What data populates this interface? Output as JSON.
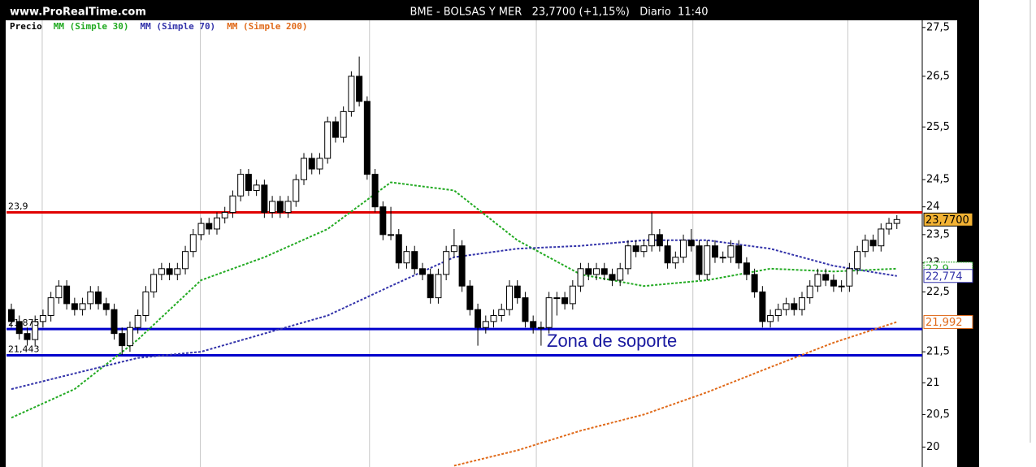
{
  "chart_data": {
    "type": "candlestick",
    "source": "www.ProRealTime.com",
    "title": "BME - BOLSAS Y MER   23,7700 (+1,15%)   Diario  11:40",
    "annotation": "Zona de soporte",
    "log_scale": true,
    "ylim": [
      19.7,
      27.65
    ],
    "yticks": [
      {
        "value": 27.5,
        "label": "27,5"
      },
      {
        "value": 26.5,
        "label": "26,5"
      },
      {
        "value": 25.5,
        "label": "25,5"
      },
      {
        "value": 24.5,
        "label": "24,5"
      },
      24,
      {
        "value": 23.5,
        "label": "23,5"
      },
      23,
      {
        "value": 22.5,
        "label": "22,5"
      },
      {
        "value": 21.5,
        "label": "21,5"
      },
      21,
      {
        "value": 20.5,
        "label": "20,5"
      },
      20
    ],
    "xgrid": [
      3.9,
      23.9,
      45.3,
      66.4,
      86.2,
      105.8
    ],
    "hlines": [
      {
        "value": 23.9,
        "label": "23,9",
        "color": "#e00000"
      },
      {
        "value": 21.875,
        "label": "21,875",
        "color": "#0000cc"
      },
      {
        "value": 21.443,
        "label": "21,443",
        "color": "#0000cc"
      }
    ],
    "series": [
      {
        "name": "Precio",
        "color": "#000000",
        "last_label": "23,7700",
        "label_color": "#f2b233",
        "open": [
          22.2,
          22.0,
          21.8,
          21.7,
          22.0,
          22.1,
          22.4,
          22.6,
          22.3,
          22.2,
          22.3,
          22.5,
          22.3,
          22.2,
          21.8,
          21.6,
          21.9,
          22.1,
          22.5,
          22.8,
          22.9,
          22.8,
          22.9,
          23.2,
          23.5,
          23.7,
          23.6,
          23.8,
          23.9,
          24.2,
          24.6,
          24.3,
          24.4,
          23.9,
          24.1,
          23.9,
          24.1,
          24.5,
          24.9,
          24.7,
          24.9,
          25.6,
          25.3,
          25.8,
          26.5,
          26.0,
          24.6,
          24.0,
          23.5,
          23.5,
          23.0,
          23.2,
          22.9,
          22.8,
          22.4,
          22.8,
          23.2,
          23.3,
          22.6,
          22.2,
          21.9,
          22.0,
          22.1,
          22.2,
          22.6,
          22.4,
          22.0,
          21.9,
          21.9,
          22.4,
          22.4,
          22.3,
          22.6,
          22.9,
          22.8,
          22.9,
          22.8,
          22.7,
          22.9,
          23.3,
          23.2,
          23.3,
          23.5,
          23.3,
          23.0,
          23.1,
          23.4,
          23.3,
          22.8,
          23.3,
          23.1,
          23.1,
          23.3,
          23.0,
          22.8,
          22.5,
          22.0,
          22.1,
          22.2,
          22.3,
          22.2,
          22.4,
          22.6,
          22.8,
          22.7,
          22.6,
          22.6,
          22.9,
          23.2,
          23.4,
          23.3,
          23.6,
          23.7
        ],
        "high": [
          22.3,
          22.1,
          21.9,
          22.1,
          22.2,
          22.5,
          22.7,
          22.7,
          22.4,
          22.4,
          22.6,
          22.6,
          22.4,
          22.3,
          21.9,
          22.0,
          22.2,
          22.6,
          22.9,
          23.0,
          23.0,
          23.0,
          23.3,
          23.6,
          23.8,
          23.8,
          23.9,
          24.0,
          24.3,
          24.7,
          24.7,
          24.5,
          24.5,
          24.2,
          24.2,
          24.2,
          24.6,
          25.0,
          25.0,
          25.0,
          25.7,
          25.7,
          25.9,
          26.6,
          26.9,
          26.1,
          24.7,
          24.1,
          24.0,
          23.6,
          23.3,
          23.3,
          23.0,
          22.9,
          22.9,
          23.3,
          23.6,
          23.4,
          22.7,
          22.3,
          22.1,
          22.2,
          22.3,
          22.7,
          22.7,
          22.5,
          22.1,
          22.0,
          22.5,
          22.5,
          22.5,
          22.7,
          23.0,
          23.0,
          23.0,
          23.0,
          22.9,
          23.0,
          23.4,
          23.4,
          23.4,
          23.9,
          23.6,
          23.4,
          23.2,
          23.5,
          23.6,
          23.4,
          23.4,
          23.4,
          23.2,
          23.4,
          23.4,
          23.1,
          22.9,
          22.6,
          22.2,
          22.3,
          22.4,
          22.4,
          22.5,
          22.7,
          22.9,
          22.9,
          22.8,
          22.7,
          23.0,
          23.3,
          23.5,
          23.5,
          23.7,
          23.8,
          23.85
        ],
        "low": [
          21.9,
          21.7,
          21.6,
          21.6,
          21.9,
          22.0,
          22.3,
          22.2,
          22.1,
          22.1,
          22.2,
          22.2,
          22.1,
          21.7,
          21.45,
          21.5,
          21.8,
          22.0,
          22.4,
          22.7,
          22.7,
          22.7,
          22.8,
          23.1,
          23.4,
          23.5,
          23.5,
          23.7,
          23.8,
          24.1,
          24.2,
          24.2,
          23.8,
          23.8,
          23.8,
          23.8,
          24.0,
          24.4,
          24.6,
          24.6,
          24.8,
          25.2,
          25.2,
          25.7,
          25.9,
          24.5,
          23.9,
          23.4,
          23.4,
          22.9,
          22.9,
          22.8,
          22.7,
          22.3,
          22.3,
          22.7,
          23.1,
          22.5,
          22.1,
          21.6,
          21.8,
          21.9,
          22.0,
          22.1,
          22.3,
          21.9,
          21.8,
          21.6,
          21.8,
          22.1,
          22.2,
          22.2,
          22.5,
          22.7,
          22.7,
          22.7,
          22.6,
          22.6,
          22.8,
          23.1,
          23.1,
          23.2,
          23.2,
          22.9,
          22.9,
          23.0,
          23.2,
          22.7,
          22.7,
          23.0,
          23.0,
          23.0,
          22.9,
          22.7,
          22.4,
          21.9,
          21.9,
          22.0,
          22.1,
          22.1,
          22.1,
          22.3,
          22.5,
          22.6,
          22.5,
          22.5,
          22.5,
          22.8,
          23.1,
          23.2,
          23.2,
          23.5,
          23.6
        ],
        "close": [
          22.0,
          21.8,
          21.7,
          22.0,
          22.1,
          22.4,
          22.6,
          22.3,
          22.2,
          22.3,
          22.5,
          22.3,
          22.2,
          21.8,
          21.6,
          21.9,
          22.1,
          22.5,
          22.8,
          22.9,
          22.8,
          22.9,
          23.2,
          23.5,
          23.7,
          23.6,
          23.8,
          23.9,
          24.2,
          24.6,
          24.3,
          24.4,
          23.9,
          24.1,
          23.9,
          24.1,
          24.5,
          24.9,
          24.7,
          24.9,
          25.6,
          25.3,
          25.8,
          26.5,
          26.0,
          24.6,
          24.0,
          23.5,
          23.5,
          23.0,
          23.2,
          22.9,
          22.8,
          22.4,
          22.8,
          23.2,
          23.3,
          22.6,
          22.2,
          21.9,
          22.0,
          22.1,
          22.2,
          22.6,
          22.4,
          22.0,
          21.9,
          21.9,
          22.4,
          22.4,
          22.3,
          22.6,
          22.9,
          22.8,
          22.9,
          22.8,
          22.7,
          22.9,
          23.3,
          23.2,
          23.3,
          23.5,
          23.3,
          23.0,
          23.1,
          23.4,
          23.3,
          22.8,
          23.3,
          23.1,
          23.1,
          23.3,
          23.0,
          22.8,
          22.5,
          22.0,
          22.1,
          22.2,
          22.3,
          22.2,
          22.4,
          22.6,
          22.8,
          22.7,
          22.6,
          22.6,
          22.9,
          23.2,
          23.4,
          23.3,
          23.6,
          23.7,
          23.77
        ]
      },
      {
        "name": "MM (Simple 30)",
        "color": "#22aa22",
        "last_label": "22,9",
        "x": [
          0,
          8,
          16,
          24,
          32,
          40,
          48,
          56,
          64,
          72,
          80,
          88,
          96,
          104,
          112
        ],
        "values": [
          20.45,
          20.9,
          21.7,
          22.7,
          23.1,
          23.6,
          24.45,
          24.3,
          23.4,
          22.8,
          22.6,
          22.7,
          22.9,
          22.85,
          22.9
        ]
      },
      {
        "name": "MM (Simple 70)",
        "color": "#3333aa",
        "last_label": "22,774",
        "x": [
          0,
          8,
          16,
          24,
          32,
          40,
          48,
          56,
          64,
          72,
          80,
          88,
          96,
          104,
          112
        ],
        "values": [
          20.9,
          21.15,
          21.4,
          21.5,
          21.8,
          22.1,
          22.6,
          23.1,
          23.25,
          23.3,
          23.4,
          23.4,
          23.25,
          22.95,
          22.774
        ]
      },
      {
        "name": "MM (Simple 200)",
        "color": "#e06a1a",
        "last_label": "21,992",
        "x": [
          56,
          64,
          72,
          80,
          88,
          96,
          104,
          112
        ],
        "values": [
          19.72,
          19.95,
          20.25,
          20.5,
          20.85,
          21.25,
          21.65,
          21.992
        ]
      }
    ]
  }
}
